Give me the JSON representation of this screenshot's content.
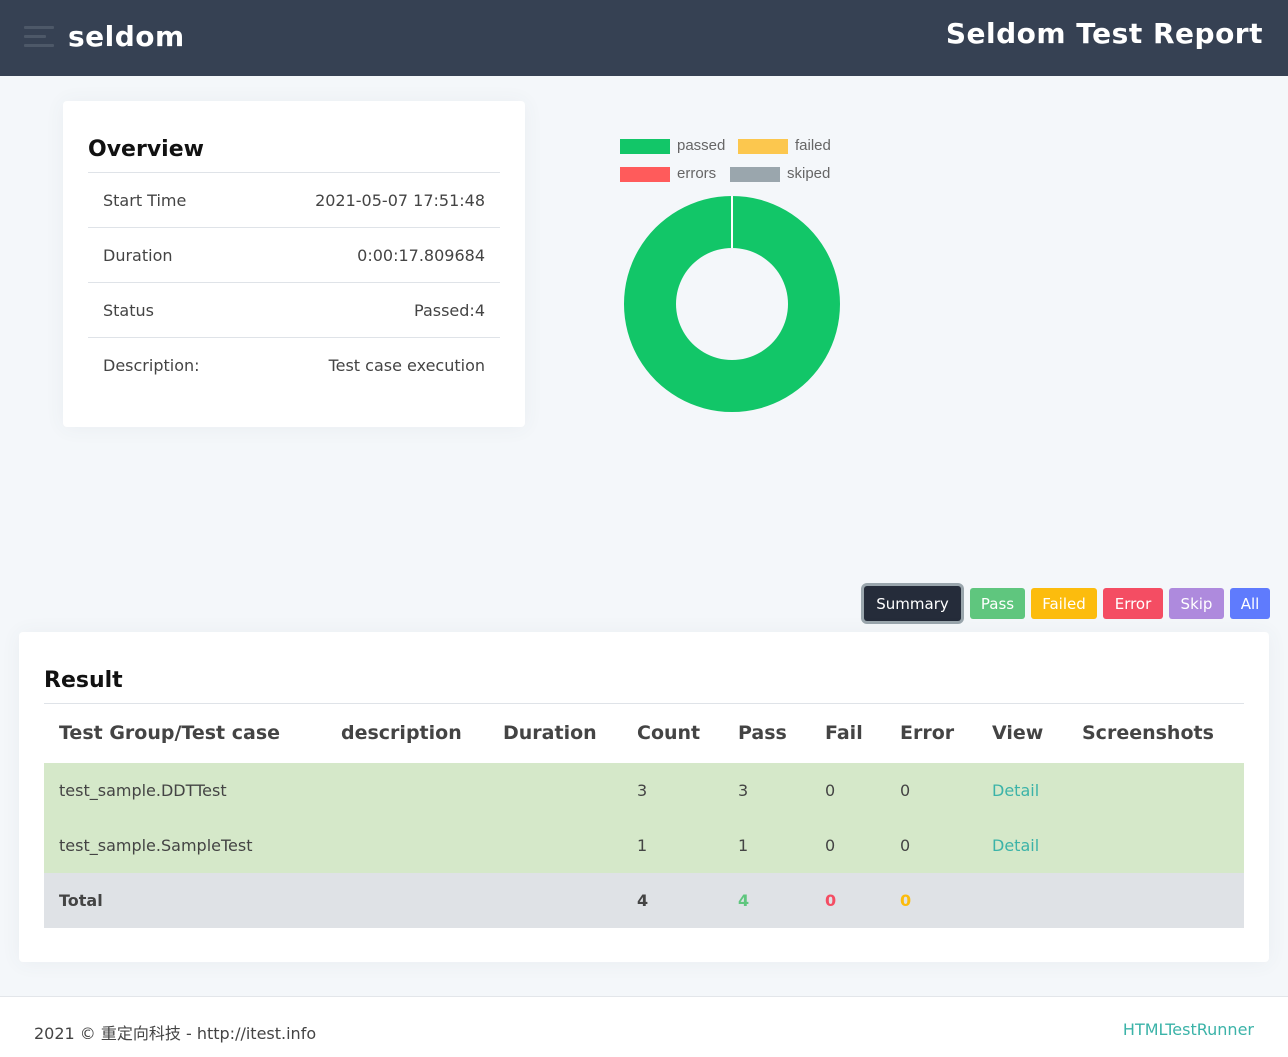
{
  "header": {
    "brand": "seldom",
    "title": "Seldom Test Report",
    "menu_icon": "hamburger-menu-icon"
  },
  "overview": {
    "title": "Overview",
    "rows": [
      {
        "label": "Start Time",
        "value": "2021-05-07 17:51:48"
      },
      {
        "label": "Duration",
        "value": "0:00:17.809684"
      },
      {
        "label": "Status",
        "value": "Passed:4"
      },
      {
        "label": "Description:",
        "value": "Test case execution"
      }
    ]
  },
  "chart_data": {
    "type": "pie",
    "variant": "doughnut",
    "legend": [
      "passed",
      "failed",
      "errors",
      "skiped"
    ],
    "values": [
      4,
      0,
      0,
      0
    ],
    "colors": [
      "#12c668",
      "#fcc74e",
      "#ff5b5b",
      "#9aa6ad"
    ],
    "legend_position": "top"
  },
  "filters": [
    {
      "label": "Summary",
      "color": "#252c3a",
      "active": true
    },
    {
      "label": "Pass",
      "color": "#5fc67e",
      "active": false
    },
    {
      "label": "Failed",
      "color": "#fcbc0d",
      "active": false
    },
    {
      "label": "Error",
      "color": "#f44d63",
      "active": false
    },
    {
      "label": "Skip",
      "color": "#ae8add",
      "active": false
    },
    {
      "label": "All",
      "color": "#5f7bfd",
      "active": false
    }
  ],
  "result": {
    "title": "Result",
    "columns": [
      "Test Group/Test case",
      "description",
      "Duration",
      "Count",
      "Pass",
      "Fail",
      "Error",
      "View",
      "Screenshots"
    ],
    "rows": [
      {
        "name": "test_sample.DDTTest",
        "description": "",
        "duration": "",
        "count": "3",
        "pass": "3",
        "fail": "0",
        "error": "0",
        "view": "Detail",
        "screenshots": ""
      },
      {
        "name": "test_sample.SampleTest",
        "description": "",
        "duration": "",
        "count": "1",
        "pass": "1",
        "fail": "0",
        "error": "0",
        "view": "Detail",
        "screenshots": ""
      }
    ],
    "total": {
      "label": "Total",
      "count": "4",
      "pass": "4",
      "fail": "0",
      "error": "0"
    },
    "total_colors": {
      "count": "#444444",
      "pass": "#5fc67e",
      "fail": "#f44d63",
      "error": "#fcbc0d"
    }
  },
  "footer": {
    "left": "2021 © 重定向科技 - http://itest.info",
    "right": "HTMLTestRunner"
  }
}
